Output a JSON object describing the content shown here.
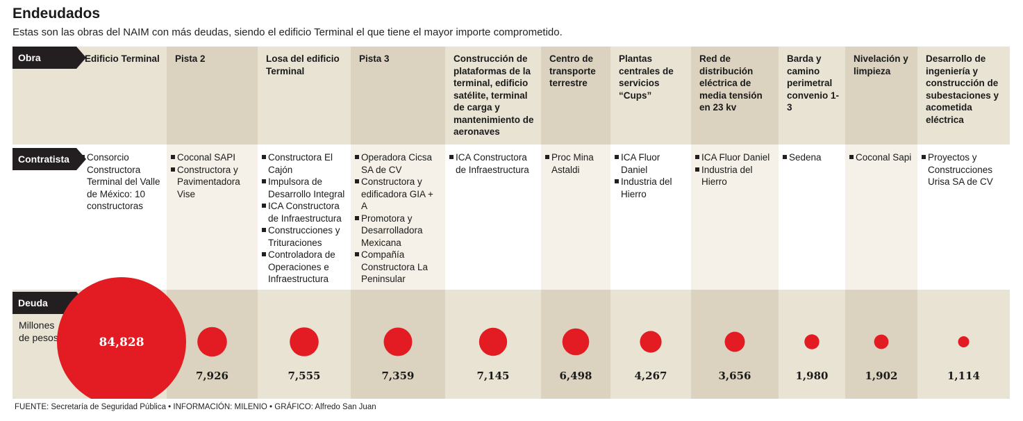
{
  "title": "Endeudados",
  "subtitle": "Estas son las obras del NAIM con más deudas, siendo el edificio Terminal el que tiene el mayor importe comprometido.",
  "row_labels": {
    "obra": "Obra",
    "contratista": "Contratista",
    "deuda": "Deuda"
  },
  "unit": "Millones de pesos",
  "source": "FUENTE: Secretaría de Seguridad Pública • INFORMACIÓN: MILENIO • GRÁFICO: Alfredo San Juan",
  "colors": {
    "bubble": "#e31b23",
    "band": "#e9e3d4",
    "tab": "#231f20"
  },
  "chart_data": {
    "type": "bubble",
    "title": "Endeudados",
    "subtitle": "Estas son las obras del NAIM con más deudas, siendo el edificio Terminal el que tiene el mayor importe comprometido.",
    "value_label": "Millones de pesos",
    "categories": [
      "Edificio Terminal",
      "Pista 2",
      "Losa del edificio Terminal",
      "Pista 3",
      "Construcción de plataformas de la terminal, edificio satélite, terminal de carga y mantenimiento de aeronaves",
      "Centro de transporte terrestre",
      "Plantas centrales de servicios “Cups”",
      "Red de distribución eléctrica de media tensión en 23 kv",
      "Barda y camino perimetral convenio 1-3",
      "Nivelación y limpieza",
      "Desarrollo de ingeniería y construcción de subestaciones y acometida eléctrica"
    ],
    "values": [
      84828,
      7926,
      7555,
      7359,
      7145,
      6498,
      4267,
      3656,
      1980,
      1902,
      1114
    ],
    "value_labels": [
      "84,828",
      "7,926",
      "7,555",
      "7,359",
      "7,145",
      "6,498",
      "4,267",
      "3,656",
      "1,980",
      "1,902",
      "1,114"
    ],
    "contractors": [
      [
        "Consorcio Constructora Terminal del Valle de México: 10 constructoras"
      ],
      [
        "Coconal SAPI",
        "Constructora y Pavimentadora Vise"
      ],
      [
        "Constructora El Cajón",
        "Impulsora de Desarrollo Integral",
        "ICA Constructora de Infraestructura",
        "Construcciones y Trituraciones",
        "Controladora de Operaciones e Infraestructura"
      ],
      [
        "Operadora Cicsa SA de CV",
        "Constructora y edificadora GIA + A",
        "Promotora y Desarrolladora Mexicana",
        "Compañía Constructora La Peninsular"
      ],
      [
        "ICA Constructora de Infraestructura"
      ],
      [
        "Proc Mina Astaldi"
      ],
      [
        "ICA Fluor Daniel",
        "Industria del Hierro"
      ],
      [
        "ICA Fluor Daniel",
        "Industria del Hierro"
      ],
      [
        "Sedena"
      ],
      [
        "Coconal Sapi"
      ],
      [
        "Proyectos y Construcciones Urisa SA de CV"
      ]
    ]
  }
}
